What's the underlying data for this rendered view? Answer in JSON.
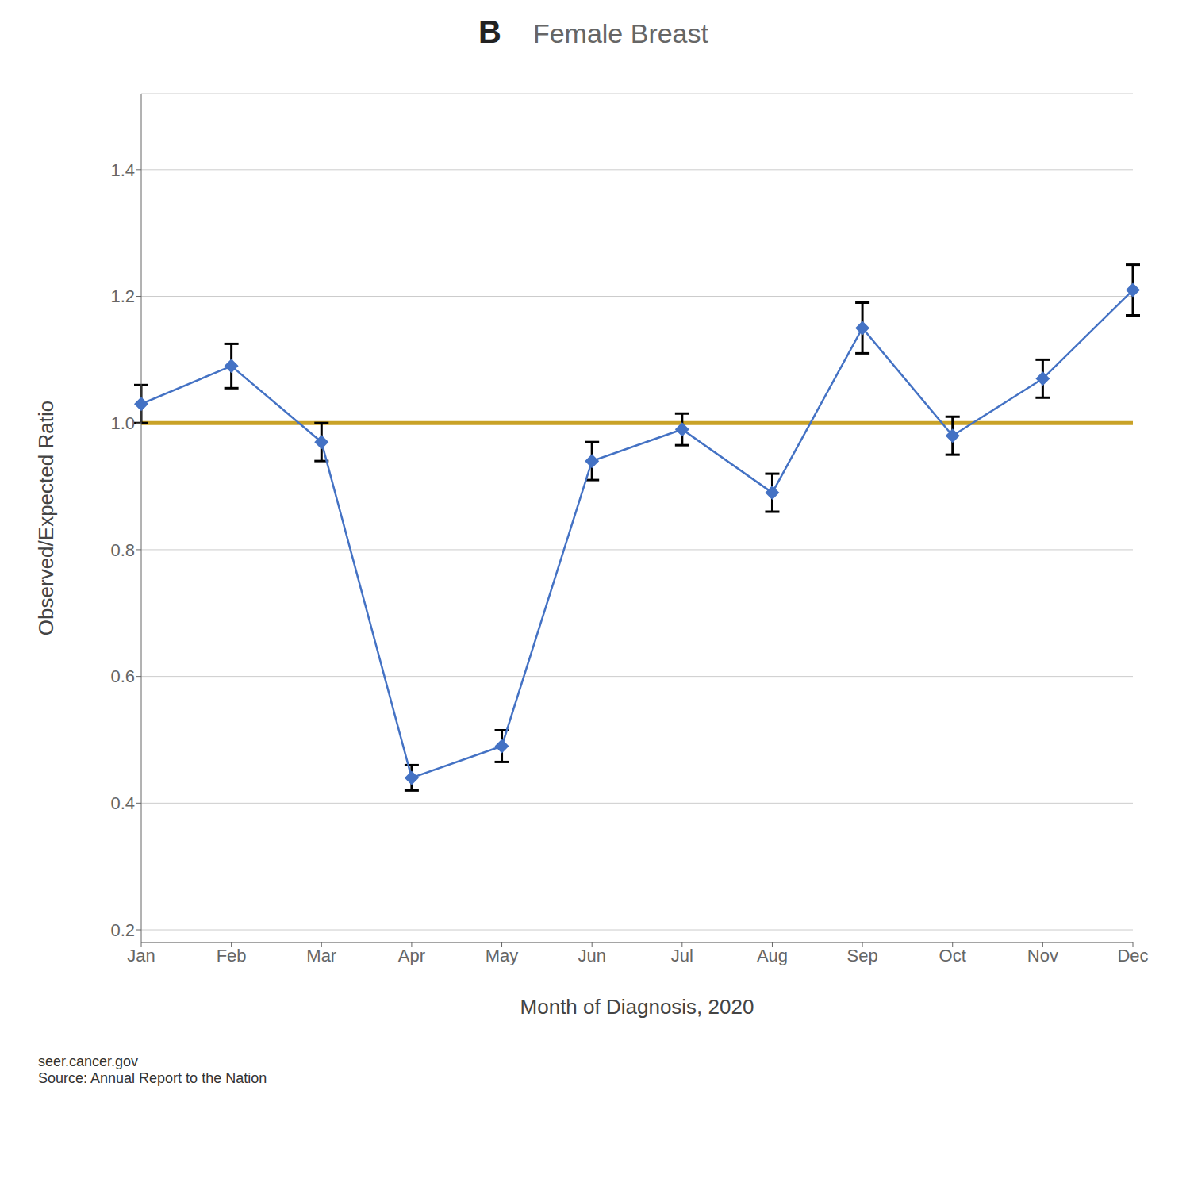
{
  "chart_data": {
    "type": "line",
    "title": "Female Breast",
    "annotations": [
      "B",
      "seer.cancer.gov\nSource: Annual Report to the Nation"
    ],
    "x_label": "Month of Diagnosis, 2020",
    "y_label": "Observed/Expected Ratio",
    "categories": [
      "Jan",
      "Feb",
      "Mar",
      "Apr",
      "May",
      "Jun",
      "Jul",
      "Aug",
      "Sep",
      "Oct",
      "Nov",
      "Dec"
    ],
    "values": [
      1.03,
      1.09,
      0.97,
      0.44,
      0.49,
      0.94,
      0.99,
      0.89,
      1.15,
      0.98,
      1.07,
      1.21
    ],
    "errors": [
      0.03,
      0.035,
      0.03,
      0.02,
      0.025,
      0.03,
      0.025,
      0.03,
      0.04,
      0.03,
      0.03,
      0.04
    ],
    "color": "#4472C4",
    "marker": "diamond",
    "reference_line": {
      "value": 1.0,
      "color": "#C9A227"
    },
    "ylim": [
      0.18,
      1.52
    ],
    "yticks": [
      0.2,
      0.4,
      0.6,
      0.8,
      {
        "value": 1.0,
        "label": "1.0"
      },
      1.2,
      1.4
    ],
    "grid": true
  }
}
